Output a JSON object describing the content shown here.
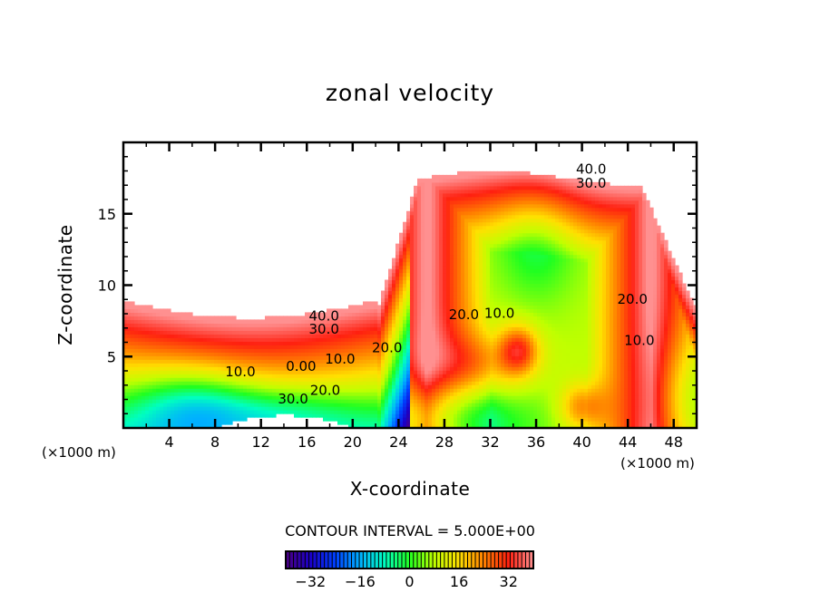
{
  "chart_data": {
    "type": "heatmap",
    "subtype": "filled-contour",
    "title": "zonal velocity",
    "xlabel": "X-coordinate",
    "ylabel": "Z-coordinate",
    "x_unit_label": "(×1000 m)",
    "z_unit_label": "(×1000 m)",
    "xlim": [
      0,
      50
    ],
    "ylim": [
      0,
      20
    ],
    "x_ticks": [
      4,
      8,
      12,
      16,
      20,
      24,
      28,
      32,
      36,
      40,
      44,
      48
    ],
    "x_tick_labels": [
      "4",
      "8",
      "12",
      "16",
      "20",
      "24",
      "28",
      "32",
      "36",
      "40",
      "44",
      "48"
    ],
    "y_ticks": [
      5,
      10,
      15
    ],
    "y_tick_labels": [
      "5",
      "10",
      "15"
    ],
    "contour_interval_text": "CONTOUR INTERVAL = 5.000E+00",
    "contour_interval": 5,
    "contour_labels": [
      {
        "text": "40.0",
        "x": 17.5,
        "z": 7.8
      },
      {
        "text": "30.0",
        "x": 17.5,
        "z": 6.9
      },
      {
        "text": "20.0",
        "x": 23.0,
        "z": 5.6
      },
      {
        "text": "10.0",
        "x": 18.9,
        "z": 4.8
      },
      {
        "text": "0.00",
        "x": 15.5,
        "z": 4.3
      },
      {
        "text": "10.0",
        "x": 10.2,
        "z": 3.9
      },
      {
        "text": "20.0",
        "x": 17.6,
        "z": 2.6
      },
      {
        "text": "30.0",
        "x": 14.8,
        "z": 2.0
      },
      {
        "text": "40.0",
        "x": 40.8,
        "z": 18.1
      },
      {
        "text": "30.0",
        "x": 40.8,
        "z": 17.1
      },
      {
        "text": "20.0",
        "x": 29.7,
        "z": 7.9
      },
      {
        "text": "10.0",
        "x": 32.8,
        "z": 8.0
      },
      {
        "text": "20.0",
        "x": 44.4,
        "z": 9.0
      },
      {
        "text": "10.0",
        "x": 45.0,
        "z": 6.1
      }
    ],
    "colorbar": {
      "min": -40,
      "max": 40,
      "ticks": [
        -32,
        -16,
        0,
        16,
        32
      ],
      "tick_labels": [
        "−32",
        "−16",
        "0",
        "16",
        "32"
      ],
      "colors": [
        "#4b0082",
        "#1a00c8",
        "#0040ff",
        "#00b0ff",
        "#00ffc0",
        "#20ff20",
        "#c0ff00",
        "#ffe000",
        "#ff8000",
        "#ff2010",
        "#ff9090"
      ]
    }
  }
}
